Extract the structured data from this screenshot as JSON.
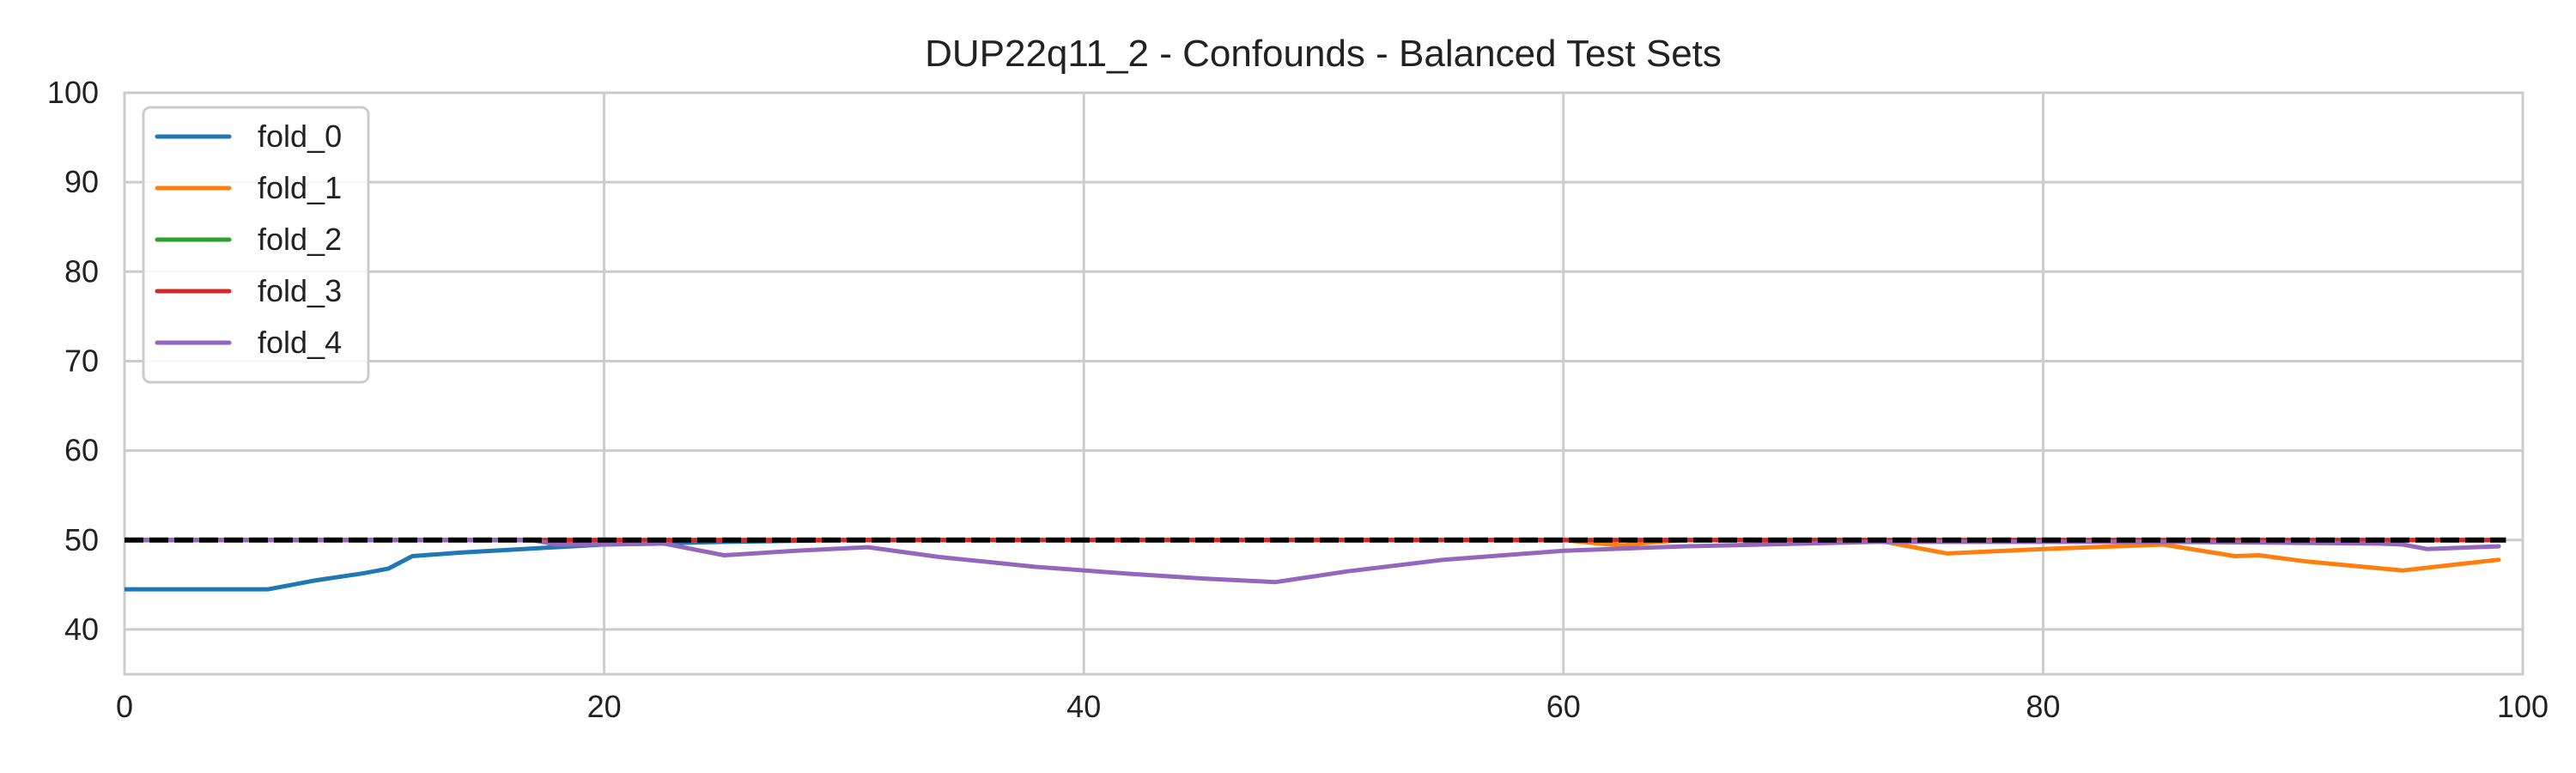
{
  "chart_data": {
    "type": "line",
    "title": "DUP22q11_2 - Confounds - Balanced Test Sets",
    "xlabel": "",
    "ylabel": "",
    "xlim": [
      0,
      100
    ],
    "ylim": [
      35,
      100
    ],
    "xticks": [
      "0",
      "20",
      "40",
      "60",
      "80",
      "100"
    ],
    "yticks": [
      "40",
      "50",
      "60",
      "70",
      "80",
      "90",
      "100"
    ],
    "grid": true,
    "legend_position": "top-left",
    "reference_line": {
      "y": 50,
      "style": "dashed",
      "color": "#000000"
    },
    "series": [
      {
        "name": "fold_0",
        "color": "#1f77b4",
        "x": [
          0,
          6,
          8,
          10,
          11,
          12,
          14,
          16,
          18,
          20,
          25,
          30,
          40,
          50,
          60,
          70,
          80,
          90,
          99
        ],
        "values": [
          44.5,
          44.5,
          45.5,
          46.3,
          46.8,
          48.2,
          48.6,
          48.9,
          49.2,
          49.5,
          49.8,
          50,
          50,
          50,
          50,
          50,
          50,
          50,
          50
        ]
      },
      {
        "name": "fold_1",
        "color": "#ff7f0e",
        "x": [
          0,
          10,
          20,
          30,
          40,
          50,
          60,
          61.5,
          62.5,
          63.5,
          65,
          70,
          73,
          76,
          80,
          85,
          88,
          89,
          91,
          93,
          95,
          97,
          99
        ],
        "values": [
          50,
          50,
          50,
          50,
          50,
          50,
          50,
          49.6,
          49.4,
          49.7,
          50,
          50,
          50,
          48.5,
          49,
          49.5,
          48.2,
          48.3,
          47.6,
          47.1,
          46.6,
          47.2,
          47.8
        ]
      },
      {
        "name": "fold_2",
        "color": "#2ca02c",
        "x": [
          0,
          20,
          40,
          60,
          80,
          99
        ],
        "values": [
          50,
          50,
          50,
          50,
          50,
          50
        ]
      },
      {
        "name": "fold_3",
        "color": "#d62728",
        "x": [
          0,
          20,
          40,
          60,
          80,
          99
        ],
        "values": [
          50,
          50,
          50,
          50,
          50,
          50
        ]
      },
      {
        "name": "fold_4",
        "color": "#9467bd",
        "x": [
          0,
          17,
          18,
          20,
          22.5,
          25,
          28,
          31,
          34,
          38,
          42,
          45,
          48,
          51,
          55,
          60,
          65,
          70,
          73,
          80,
          85,
          90,
          94,
          95,
          96,
          98,
          99
        ],
        "values": [
          50,
          50,
          49.5,
          49.5,
          49.6,
          48.3,
          48.8,
          49.2,
          48.1,
          47,
          46.2,
          45.7,
          45.3,
          46.5,
          47.8,
          48.8,
          49.3,
          49.6,
          49.8,
          49.8,
          49.8,
          49.7,
          49.6,
          49.5,
          49,
          49.2,
          49.3
        ]
      }
    ]
  }
}
